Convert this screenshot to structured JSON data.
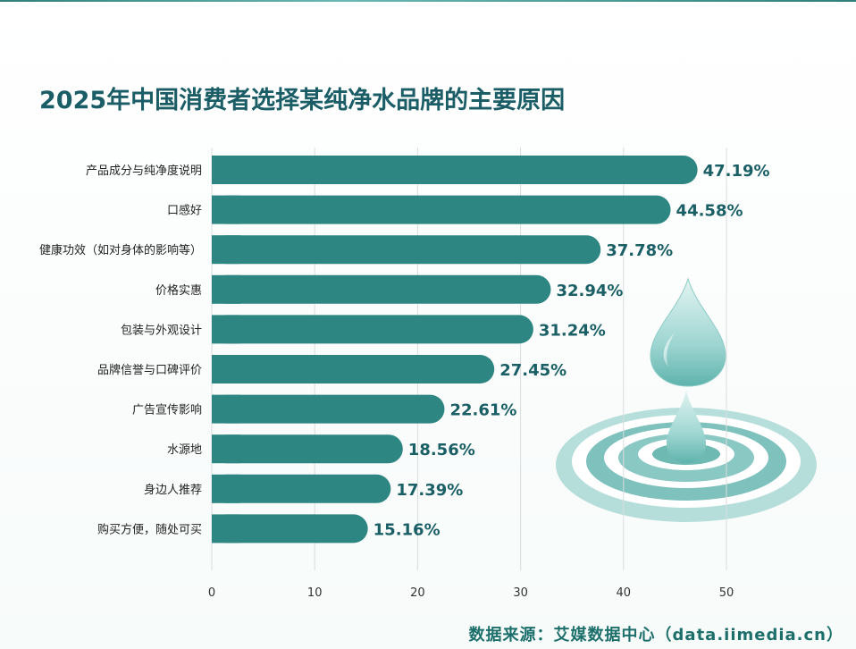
{
  "title": "2025年中国消费者选择某纯净水品牌的主要原因",
  "source": "数据来源：艾媒数据中心（data.iimedia.cn）",
  "colors": {
    "bar": "#2e8683",
    "label_value": "#1b5f66",
    "title": "#1b5d66",
    "grid": "#d9dddd"
  },
  "decoration": {
    "icon": "water-drop-ripple-icon"
  },
  "chart_data": {
    "type": "bar",
    "orientation": "horizontal",
    "title": "2025年中国消费者选择某纯净水品牌的主要原因",
    "categories": [
      "产品成分与纯净度说明",
      "口感好",
      "健康功效（如对身体的影响等）",
      "价格实惠",
      "包装与外观设计",
      "品牌信誉与口碑评价",
      "广告宣传影响",
      "水源地",
      "身边人推荐",
      "购买方便，随处可买"
    ],
    "values": [
      47.19,
      44.58,
      37.78,
      32.94,
      31.24,
      27.45,
      22.61,
      18.56,
      17.39,
      15.16
    ],
    "value_labels": [
      "47.19%",
      "44.58%",
      "37.78%",
      "32.94%",
      "31.24%",
      "27.45%",
      "22.61%",
      "18.56%",
      "17.39%",
      "15.16%"
    ],
    "xlim": [
      0,
      50
    ],
    "xticks": [
      0,
      10,
      20,
      30,
      40,
      50
    ],
    "grid": "vertical",
    "xlabel": "",
    "ylabel": ""
  }
}
